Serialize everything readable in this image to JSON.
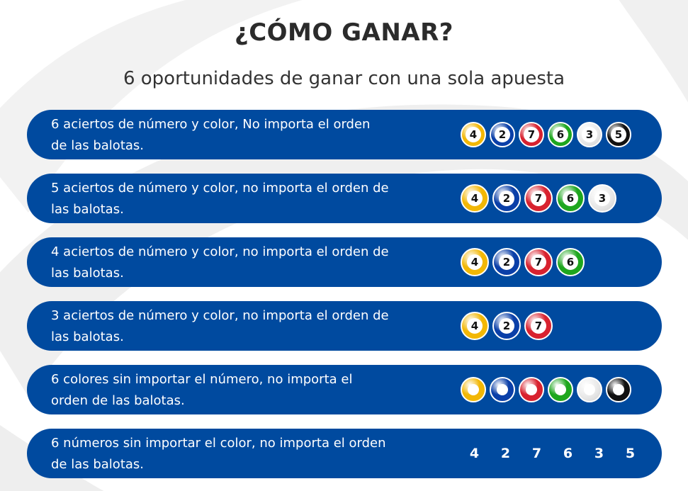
{
  "header": {
    "title": "¿CÓMO GANAR?",
    "subtitle": "6 oportunidades de ganar con una sola apuesta"
  },
  "colors": {
    "row_bg": "#004a9f",
    "yellow": "#f2b705",
    "blue": "#0a3fa8",
    "red": "#d8222f",
    "green": "#1ea61e",
    "white": "#e8e8e8",
    "black": "#111111"
  },
  "rows": [
    {
      "text_line1": "6 aciertos de número y color, No importa el orden",
      "text_line2": "de las balotas.",
      "balls": [
        {
          "number": "4",
          "color": "yellow"
        },
        {
          "number": "2",
          "color": "blue"
        },
        {
          "number": "7",
          "color": "red"
        },
        {
          "number": "6",
          "color": "green"
        },
        {
          "number": "3",
          "color": "white"
        },
        {
          "number": "5",
          "color": "black"
        }
      ]
    },
    {
      "text_line1": "5 aciertos de número y color, no importa el orden de",
      "text_line2": "las balotas.",
      "balls": [
        {
          "number": "4",
          "color": "yellow"
        },
        {
          "number": "2",
          "color": "blue"
        },
        {
          "number": "7",
          "color": "red"
        },
        {
          "number": "6",
          "color": "green"
        },
        {
          "number": "3",
          "color": "white"
        }
      ]
    },
    {
      "text_line1": "4 aciertos de número y color, no importa el orden de",
      "text_line2": "las balotas.",
      "balls": [
        {
          "number": "4",
          "color": "yellow"
        },
        {
          "number": "2",
          "color": "blue"
        },
        {
          "number": "7",
          "color": "red"
        },
        {
          "number": "6",
          "color": "green"
        }
      ]
    },
    {
      "text_line1": "3 aciertos de número y color, no importa el orden de",
      "text_line2": "las balotas.",
      "balls": [
        {
          "number": "4",
          "color": "yellow"
        },
        {
          "number": "2",
          "color": "blue"
        },
        {
          "number": "7",
          "color": "red"
        }
      ]
    },
    {
      "text_line1": "6 colores sin importar el número, no importa el",
      "text_line2": "orden de las balotas.",
      "balls": [
        {
          "number": "",
          "color": "yellow"
        },
        {
          "number": "",
          "color": "blue"
        },
        {
          "number": "",
          "color": "red"
        },
        {
          "number": "",
          "color": "green"
        },
        {
          "number": "",
          "color": "white"
        },
        {
          "number": "",
          "color": "black"
        }
      ]
    },
    {
      "text_line1": "6 números sin importar el color, no importa el orden",
      "text_line2": "de las balotas.",
      "numbers": [
        "4",
        "2",
        "7",
        "6",
        "3",
        "5"
      ]
    }
  ]
}
